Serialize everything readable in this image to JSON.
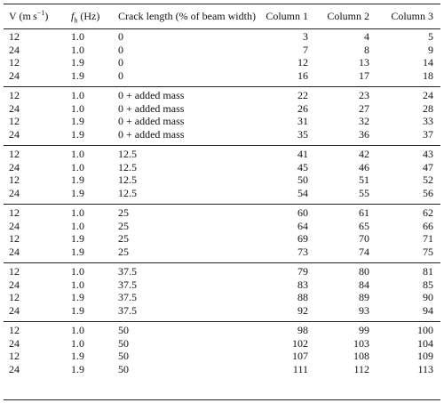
{
  "table": {
    "header": [
      [
        "V (m s",
        "−1",
        ")"
      ],
      [
        "f",
        "h",
        " (Hz)"
      ],
      "Crack length (% of beam width)",
      "Column 1",
      "Column 2",
      "Column 3"
    ],
    "groups": [
      [
        [
          "12",
          "1.0",
          "0",
          "3",
          "4",
          "5"
        ],
        [
          "24",
          "1.0",
          "0",
          "7",
          "8",
          "9"
        ],
        [
          "12",
          "1.9",
          "0",
          "12",
          "13",
          "14"
        ],
        [
          "24",
          "1.9",
          "0",
          "16",
          "17",
          "18"
        ]
      ],
      [
        [
          "12",
          "1.0",
          "0 + added mass",
          "22",
          "23",
          "24"
        ],
        [
          "24",
          "1.0",
          "0 + added mass",
          "26",
          "27",
          "28"
        ],
        [
          "12",
          "1.9",
          "0 + added mass",
          "31",
          "32",
          "33"
        ],
        [
          "24",
          "1.9",
          "0 + added mass",
          "35",
          "36",
          "37"
        ]
      ],
      [
        [
          "12",
          "1.0",
          "12.5",
          "41",
          "42",
          "43"
        ],
        [
          "24",
          "1.0",
          "12.5",
          "45",
          "46",
          "47"
        ],
        [
          "12",
          "1.9",
          "12.5",
          "50",
          "51",
          "52"
        ],
        [
          "24",
          "1.9",
          "12.5",
          "54",
          "55",
          "56"
        ]
      ],
      [
        [
          "12",
          "1.0",
          "25",
          "60",
          "61",
          "62"
        ],
        [
          "24",
          "1.0",
          "25",
          "64",
          "65",
          "66"
        ],
        [
          "12",
          "1.9",
          "25",
          "69",
          "70",
          "71"
        ],
        [
          "24",
          "1.9",
          "25",
          "73",
          "74",
          "75"
        ]
      ],
      [
        [
          "12",
          "1.0",
          "37.5",
          "79",
          "80",
          "81"
        ],
        [
          "24",
          "1.0",
          "37.5",
          "83",
          "84",
          "85"
        ],
        [
          "12",
          "1.9",
          "37.5",
          "88",
          "89",
          "90"
        ],
        [
          "24",
          "1.9",
          "37.5",
          "92",
          "93",
          "94"
        ]
      ],
      [
        [
          "12",
          "1.0",
          "50",
          "98",
          "99",
          "100"
        ],
        [
          "24",
          "1.0",
          "50",
          "102",
          "103",
          "104"
        ],
        [
          "12",
          "1.9",
          "50",
          "107",
          "108",
          "109"
        ],
        [
          "24",
          "1.9",
          "50",
          "111",
          "112",
          "113"
        ]
      ]
    ]
  }
}
